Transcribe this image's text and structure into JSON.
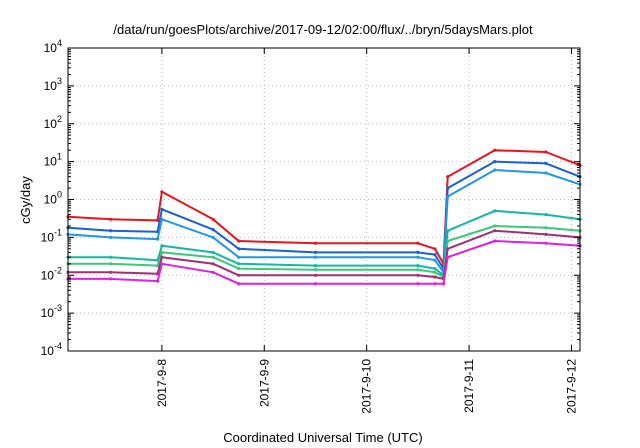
{
  "chart_data": {
    "type": "line",
    "title": "/data/run/goesPlots/archive/2017-09-12/02:00/flux/../bryn/5daysMars.plot",
    "xlabel": "Coordinated Universal Time (UTC)",
    "ylabel": "cGy/day",
    "yscale": "log",
    "ylim": [
      0.0001,
      10000
    ],
    "xlim": [
      "2017-09-07 02:00",
      "2017-09-12 02:00"
    ],
    "grid": true,
    "legend": "none",
    "y_ticks": [
      {
        "base": "10",
        "exp": "-4"
      },
      {
        "base": "10",
        "exp": "-3"
      },
      {
        "base": "10",
        "exp": "-2"
      },
      {
        "base": "10",
        "exp": "-1"
      },
      {
        "base": "10",
        "exp": "0"
      },
      {
        "base": "10",
        "exp": "1"
      },
      {
        "base": "10",
        "exp": "2"
      },
      {
        "base": "10",
        "exp": "3"
      },
      {
        "base": "10",
        "exp": "4"
      }
    ],
    "x_ticks": [
      {
        "label": "2017-9-8",
        "date": "2017-09-08"
      },
      {
        "label": "2017-9-9",
        "date": "2017-09-09"
      },
      {
        "label": "2017-9-10",
        "date": "2017-09-10"
      },
      {
        "label": "2017-9-11",
        "date": "2017-09-11"
      },
      {
        "label": "2017-9-12",
        "date": "2017-09-12"
      }
    ],
    "x": [
      "2017-09-07 02:00",
      "2017-09-07 12:00",
      "2017-09-07 23:00",
      "2017-09-08 00:00",
      "2017-09-08 12:00",
      "2017-09-08 18:00",
      "2017-09-09 12:00",
      "2017-09-10 12:00",
      "2017-09-10 16:00",
      "2017-09-10 18:00",
      "2017-09-10 19:00",
      "2017-09-11 06:00",
      "2017-09-11 18:00",
      "2017-09-12 02:00"
    ],
    "series": [
      {
        "color": "#e8141e",
        "values": [
          0.35,
          0.3,
          0.28,
          1.6,
          0.3,
          0.08,
          0.07,
          0.07,
          0.05,
          0.02,
          4.0,
          20,
          18,
          8
        ]
      },
      {
        "color": "#1a5fd8",
        "values": [
          0.18,
          0.15,
          0.14,
          0.55,
          0.16,
          0.05,
          0.04,
          0.04,
          0.035,
          0.015,
          2.0,
          10,
          9,
          4
        ]
      },
      {
        "color": "#2296e8",
        "values": [
          0.12,
          0.1,
          0.09,
          0.3,
          0.1,
          0.03,
          0.03,
          0.03,
          0.025,
          0.012,
          1.2,
          6,
          5,
          2.5
        ]
      },
      {
        "color": "#14b8a0",
        "values": [
          0.03,
          0.03,
          0.025,
          0.06,
          0.04,
          0.02,
          0.018,
          0.018,
          0.015,
          0.01,
          0.15,
          0.5,
          0.4,
          0.3
        ]
      },
      {
        "color": "#3cc878",
        "values": [
          0.02,
          0.02,
          0.018,
          0.04,
          0.03,
          0.015,
          0.014,
          0.014,
          0.012,
          0.009,
          0.08,
          0.2,
          0.18,
          0.15
        ]
      },
      {
        "color": "#a03070",
        "values": [
          0.012,
          0.012,
          0.011,
          0.03,
          0.02,
          0.01,
          0.01,
          0.01,
          0.009,
          0.008,
          0.05,
          0.15,
          0.12,
          0.1
        ]
      },
      {
        "color": "#e020e0",
        "values": [
          0.008,
          0.008,
          0.007,
          0.02,
          0.012,
          0.006,
          0.006,
          0.006,
          0.006,
          0.006,
          0.03,
          0.08,
          0.07,
          0.06
        ]
      }
    ]
  }
}
